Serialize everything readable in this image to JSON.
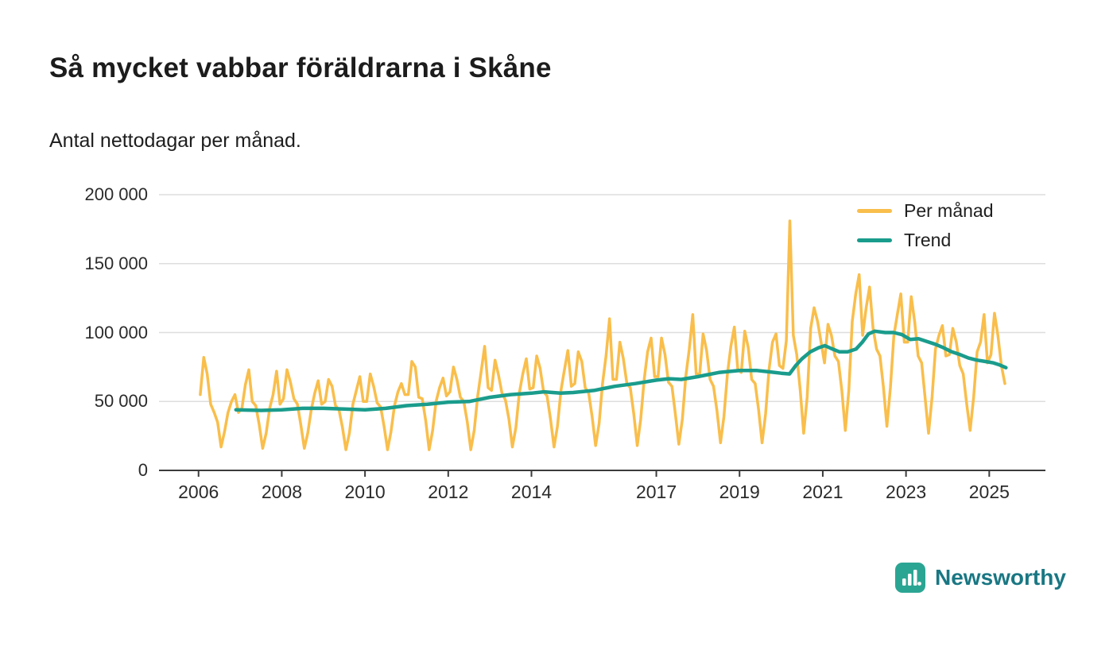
{
  "chart_data": {
    "type": "line",
    "title": "Så mycket vabbar föräldrarna i Skåne",
    "subtitle": "Antal nettodagar per månad.",
    "xlabel": "",
    "ylabel": "",
    "ylim": [
      0,
      200000
    ],
    "x_domain": [
      2005.05,
      2026.35
    ],
    "grid": "horizontal",
    "legend_position": "top-right",
    "yticks": [
      {
        "value": 0,
        "label": "0"
      },
      {
        "value": 50000,
        "label": "50 000"
      },
      {
        "value": 100000,
        "label": "100 000"
      },
      {
        "value": 150000,
        "label": "150 000"
      },
      {
        "value": 200000,
        "label": "200 000"
      }
    ],
    "xticks": [
      {
        "year": 2006,
        "label": "2006"
      },
      {
        "year": 2008,
        "label": "2008"
      },
      {
        "year": 2010,
        "label": "2010"
      },
      {
        "year": 2012,
        "label": "2012"
      },
      {
        "year": 2014,
        "label": "2014"
      },
      {
        "year": 2017,
        "label": "2017"
      },
      {
        "year": 2019,
        "label": "2019"
      },
      {
        "year": 2021,
        "label": "2021"
      },
      {
        "year": 2023,
        "label": "2023"
      },
      {
        "year": 2025,
        "label": "2025"
      }
    ],
    "series": [
      {
        "name": "Per månad",
        "color": "#F9BE4B",
        "frequency": "monthly",
        "start_year": 2006,
        "start_month": 1,
        "values": [
          55000,
          82000,
          70000,
          48000,
          42000,
          35000,
          17000,
          28000,
          42000,
          50000,
          55000,
          42000,
          45000,
          62000,
          73000,
          50000,
          47000,
          33000,
          16000,
          27000,
          45000,
          55000,
          72000,
          48000,
          52000,
          73000,
          64000,
          52000,
          48000,
          33000,
          16000,
          27000,
          44000,
          56000,
          65000,
          48000,
          50000,
          66000,
          61000,
          47000,
          44000,
          31000,
          15000,
          27000,
          48000,
          58000,
          68000,
          50000,
          50000,
          70000,
          61000,
          49000,
          46000,
          32000,
          15000,
          28000,
          47000,
          57000,
          63000,
          55000,
          55000,
          79000,
          75000,
          53000,
          52000,
          36000,
          15000,
          29000,
          50000,
          60000,
          67000,
          54000,
          57000,
          75000,
          66000,
          53000,
          50000,
          35000,
          15000,
          29000,
          54000,
          72000,
          90000,
          60000,
          58000,
          80000,
          69000,
          56000,
          51000,
          37000,
          17000,
          31000,
          56000,
          70000,
          81000,
          59000,
          60000,
          83000,
          74000,
          57000,
          54000,
          37000,
          17000,
          32000,
          58000,
          73000,
          87000,
          61000,
          63000,
          86000,
          79000,
          60000,
          56000,
          39000,
          18000,
          34000,
          63000,
          83000,
          110000,
          66000,
          66000,
          93000,
          81000,
          63000,
          60000,
          41000,
          18000,
          37000,
          66000,
          86000,
          96000,
          68000,
          68000,
          96000,
          84000,
          64000,
          61000,
          41000,
          19000,
          37000,
          68000,
          88000,
          113000,
          70000,
          70000,
          99000,
          87000,
          66000,
          61000,
          43000,
          20000,
          39000,
          70000,
          90000,
          104000,
          73000,
          71000,
          101000,
          89000,
          66000,
          63000,
          44000,
          20000,
          41000,
          73000,
          93000,
          99000,
          76000,
          74000,
          94000,
          181000,
          98000,
          84000,
          58000,
          27000,
          53000,
          103000,
          118000,
          108000,
          93000,
          78000,
          106000,
          98000,
          83000,
          79000,
          58000,
          29000,
          58000,
          108000,
          128000,
          142000,
          98000,
          118000,
          133000,
          103000,
          88000,
          83000,
          60000,
          32000,
          60000,
          98000,
          113000,
          128000,
          93000,
          93000,
          126000,
          108000,
          83000,
          78000,
          53000,
          27000,
          53000,
          88000,
          98000,
          105000,
          83000,
          84000,
          103000,
          93000,
          76000,
          70000,
          48000,
          29000,
          53000,
          86000,
          93000,
          113000,
          78000,
          84000,
          114000,
          98000,
          76000,
          63000
        ]
      },
      {
        "name": "Trend",
        "color": "#1A9C8C",
        "frequency": "points",
        "points": [
          [
            2006.9,
            44000
          ],
          [
            2007.5,
            43500
          ],
          [
            2008.0,
            44000
          ],
          [
            2008.5,
            45000
          ],
          [
            2009.0,
            45000
          ],
          [
            2009.5,
            44500
          ],
          [
            2010.0,
            44000
          ],
          [
            2010.5,
            45000
          ],
          [
            2011.0,
            47000
          ],
          [
            2011.5,
            48000
          ],
          [
            2012.0,
            49500
          ],
          [
            2012.5,
            50000
          ],
          [
            2013.0,
            53000
          ],
          [
            2013.5,
            55000
          ],
          [
            2014.0,
            56000
          ],
          [
            2014.3,
            57000
          ],
          [
            2014.7,
            56000
          ],
          [
            2015.0,
            56500
          ],
          [
            2015.5,
            58000
          ],
          [
            2016.0,
            61000
          ],
          [
            2016.5,
            63000
          ],
          [
            2017.0,
            65500
          ],
          [
            2017.3,
            66500
          ],
          [
            2017.6,
            66000
          ],
          [
            2018.0,
            68000
          ],
          [
            2018.5,
            71000
          ],
          [
            2019.0,
            72500
          ],
          [
            2019.4,
            72500
          ],
          [
            2019.7,
            71500
          ],
          [
            2020.0,
            70500
          ],
          [
            2020.2,
            70000
          ],
          [
            2020.35,
            76000
          ],
          [
            2020.5,
            81000
          ],
          [
            2020.7,
            86000
          ],
          [
            2020.9,
            89000
          ],
          [
            2021.05,
            90500
          ],
          [
            2021.2,
            88500
          ],
          [
            2021.4,
            86000
          ],
          [
            2021.6,
            86000
          ],
          [
            2021.8,
            88000
          ],
          [
            2021.95,
            93000
          ],
          [
            2022.1,
            99000
          ],
          [
            2022.25,
            101000
          ],
          [
            2022.5,
            100000
          ],
          [
            2022.7,
            100000
          ],
          [
            2022.9,
            98500
          ],
          [
            2023.1,
            95000
          ],
          [
            2023.3,
            95500
          ],
          [
            2023.5,
            93500
          ],
          [
            2023.7,
            91500
          ],
          [
            2023.9,
            89000
          ],
          [
            2024.1,
            86000
          ],
          [
            2024.3,
            84000
          ],
          [
            2024.5,
            81500
          ],
          [
            2024.7,
            80000
          ],
          [
            2024.9,
            79000
          ],
          [
            2025.1,
            78000
          ],
          [
            2025.25,
            76500
          ],
          [
            2025.4,
            74500
          ]
        ]
      }
    ]
  },
  "legend": {
    "entries": [
      "Per månad",
      "Trend"
    ]
  },
  "footer": {
    "brand": "Newsworthy",
    "icon_color": "#2BA593",
    "text_color": "#197783"
  }
}
